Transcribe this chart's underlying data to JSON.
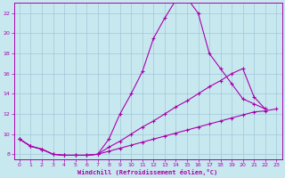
{
  "background_color": "#c8e8f0",
  "grid_color": "#a0c8d8",
  "line_color": "#aa00aa",
  "xlabel": "Windchill (Refroidissement éolien,°C)",
  "xlim": [
    -0.5,
    23.5
  ],
  "ylim": [
    7.5,
    23.0
  ],
  "yticks": [
    8,
    10,
    12,
    14,
    16,
    18,
    20,
    22
  ],
  "xticks": [
    0,
    1,
    2,
    3,
    4,
    5,
    6,
    7,
    8,
    9,
    10,
    11,
    12,
    13,
    14,
    15,
    16,
    17,
    18,
    19,
    20,
    21,
    22,
    23
  ],
  "series1_x": [
    0,
    1,
    2,
    3,
    4,
    5,
    6,
    7,
    8,
    9,
    10,
    11,
    12,
    13,
    14,
    15,
    16,
    17,
    18,
    19,
    20,
    21,
    22
  ],
  "series1_y": [
    9.5,
    8.8,
    8.5,
    8.0,
    7.9,
    7.9,
    7.9,
    8.0,
    9.5,
    12.0,
    14.0,
    16.2,
    19.5,
    21.5,
    23.3,
    23.5,
    22.0,
    18.0,
    16.5,
    15.0,
    13.5,
    13.0,
    12.5
  ],
  "series2_x": [
    0,
    1,
    2,
    3,
    4,
    5,
    6,
    7,
    8,
    9,
    10,
    11,
    12,
    13,
    14,
    15,
    16,
    17,
    18,
    19,
    20,
    21,
    22
  ],
  "series2_y": [
    9.5,
    8.8,
    8.5,
    8.0,
    7.9,
    7.9,
    7.9,
    8.0,
    8.7,
    9.3,
    10.0,
    10.7,
    11.3,
    12.0,
    12.7,
    13.3,
    14.0,
    14.7,
    15.3,
    16.0,
    16.5,
    13.7,
    12.5
  ],
  "series3_x": [
    0,
    1,
    2,
    3,
    4,
    5,
    6,
    7,
    8,
    9,
    10,
    11,
    12,
    13,
    14,
    15,
    16,
    17,
    18,
    19,
    20,
    21,
    22,
    23
  ],
  "series3_y": [
    9.5,
    8.8,
    8.5,
    8.0,
    7.9,
    7.9,
    7.9,
    8.0,
    8.3,
    8.6,
    8.9,
    9.2,
    9.5,
    9.8,
    10.1,
    10.4,
    10.7,
    11.0,
    11.3,
    11.6,
    11.9,
    12.2,
    12.3,
    12.5
  ]
}
